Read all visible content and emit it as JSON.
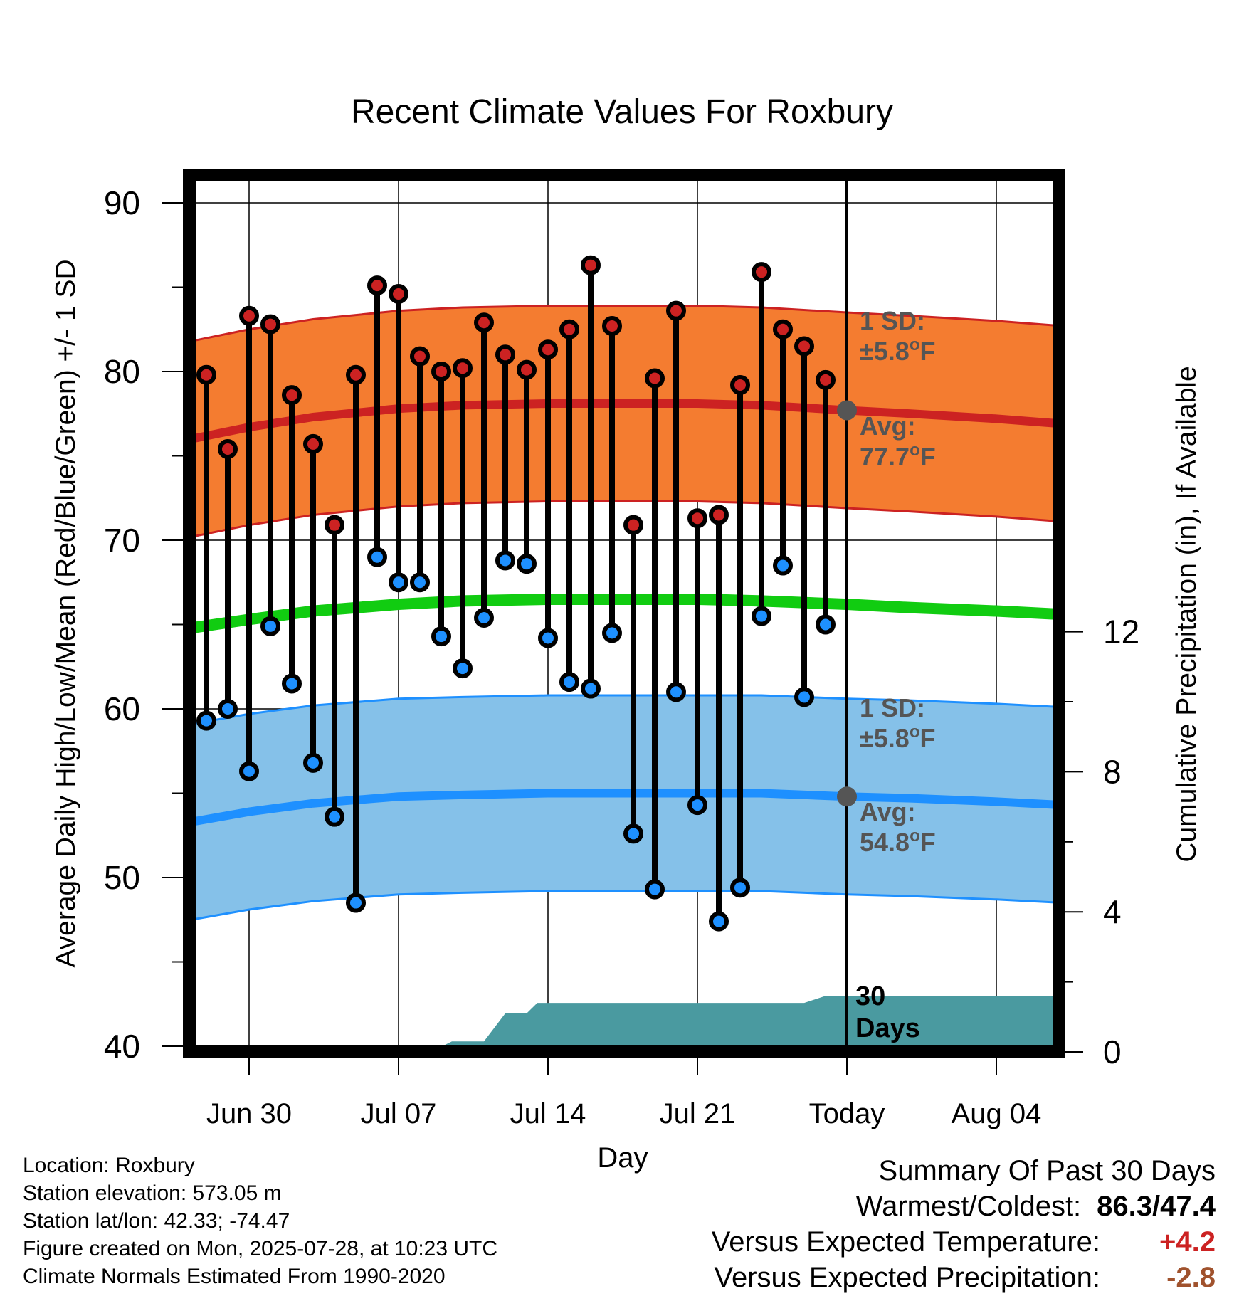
{
  "title": "Recent Climate Values For Roxbury",
  "colors": {
    "high": "#cc2222",
    "low": "#1e90ff",
    "mean": "#11cc11",
    "high_band": "#f47c30",
    "low_band": "#85c1e9",
    "precip": "#4a9aa0",
    "pos_anomaly": "#cc2222",
    "neg_anomaly": "#a0522d"
  },
  "chart_data": {
    "type": "line",
    "title": "Recent Climate Values For Roxbury",
    "xlabel": "Day",
    "ylabel": "Average Daily High/Low/Mean (Red/Blue/Green) +/- 1 SD",
    "y2label": "Cumulative Precipitation (in), If Available",
    "ylim": [
      40,
      90
    ],
    "y2lim": [
      0,
      16
    ],
    "yticks": [
      "40",
      "50",
      "60",
      "70",
      "80",
      "90"
    ],
    "y2ticks": [
      "0",
      "4",
      "8",
      "12"
    ],
    "xtick_labels": [
      "Jun 30",
      "Jul 07",
      "Jul 14",
      "Jul 21",
      "Today",
      "Aug 04"
    ],
    "xtick_days": [
      0,
      7,
      14,
      21,
      28,
      35
    ],
    "xlim": [
      -2.7,
      38.1
    ],
    "today_day": 28,
    "days": [
      -2,
      -1,
      0,
      1,
      2,
      3,
      4,
      5,
      6,
      7,
      8,
      9,
      10,
      11,
      12,
      13,
      14,
      15,
      16,
      17,
      18,
      19,
      20,
      21,
      22,
      23,
      24,
      25,
      26,
      27
    ],
    "highs": [
      79.8,
      75.4,
      83.3,
      82.8,
      78.6,
      75.7,
      70.9,
      79.8,
      85.1,
      84.6,
      80.9,
      80.0,
      80.2,
      82.9,
      81.0,
      80.1,
      81.3,
      82.5,
      86.3,
      82.7,
      70.9,
      79.6,
      83.6,
      71.3,
      71.5,
      79.2,
      85.9,
      82.5,
      81.5,
      79.5
    ],
    "lows": [
      59.3,
      60.0,
      56.3,
      64.9,
      61.5,
      56.8,
      53.6,
      48.5,
      69.0,
      67.5,
      67.5,
      64.3,
      62.4,
      65.4,
      68.8,
      68.6,
      64.2,
      61.6,
      61.2,
      64.5,
      52.6,
      49.3,
      61.0,
      54.3,
      47.4,
      49.4,
      65.5,
      68.5,
      60.7,
      65.0
    ],
    "normal_days": [
      -2.7,
      0,
      3,
      7,
      10,
      14,
      17,
      21,
      24,
      28,
      31,
      35,
      38.1
    ],
    "normal_high": [
      76.0,
      76.7,
      77.3,
      77.8,
      78.0,
      78.1,
      78.1,
      78.1,
      78.0,
      77.7,
      77.5,
      77.2,
      76.9
    ],
    "normal_mean": [
      64.8,
      65.3,
      65.8,
      66.2,
      66.4,
      66.5,
      66.5,
      66.5,
      66.4,
      66.2,
      66.0,
      65.8,
      65.6
    ],
    "normal_low": [
      53.3,
      53.9,
      54.4,
      54.8,
      54.9,
      55.0,
      55.0,
      55.0,
      55.0,
      54.8,
      54.7,
      54.5,
      54.3
    ],
    "sd_high": 5.8,
    "sd_low": 5.8,
    "precip_days": [
      -2.7,
      8.5,
      9.5,
      10.5,
      11,
      12,
      13,
      13.5,
      14,
      22,
      22.5,
      23,
      26,
      27,
      28,
      38.1
    ],
    "precip_cum": [
      0,
      0,
      0.3,
      0.3,
      0.3,
      1.1,
      1.1,
      1.4,
      1.4,
      1.4,
      1.4,
      1.4,
      1.4,
      1.6,
      1.6,
      1.6
    ],
    "annotations": {
      "high_sd_label": "1 SD:",
      "high_sd_value": "±5.8",
      "high_avg_label": "Avg:",
      "high_avg_value": "77.7",
      "low_sd_label": "1 SD:",
      "low_sd_value": "±5.8",
      "low_avg_label": "Avg:",
      "low_avg_value": "54.8",
      "unit_sup": "o",
      "unit": "F",
      "precip_label_1": "30",
      "precip_label_2": "Days"
    }
  },
  "metadata": {
    "location": "Location: Roxbury",
    "elevation": "Station elevation: 573.05 m",
    "latlon": "Station lat/lon: 42.33; -74.47",
    "created": "Figure created on Mon, 2025-07-28, at 10:23 UTC",
    "normals": "Climate Normals Estimated From 1990-2020"
  },
  "summary": {
    "heading": "Summary Of Past 30 Days",
    "warm_cold_label": "Warmest/Coldest:",
    "warm_cold_value": "86.3/47.4",
    "temp_label": "Versus Expected Temperature:",
    "temp_value": "+4.2",
    "precip_label": "Versus Expected Precipitation:",
    "precip_value": "-2.8"
  }
}
